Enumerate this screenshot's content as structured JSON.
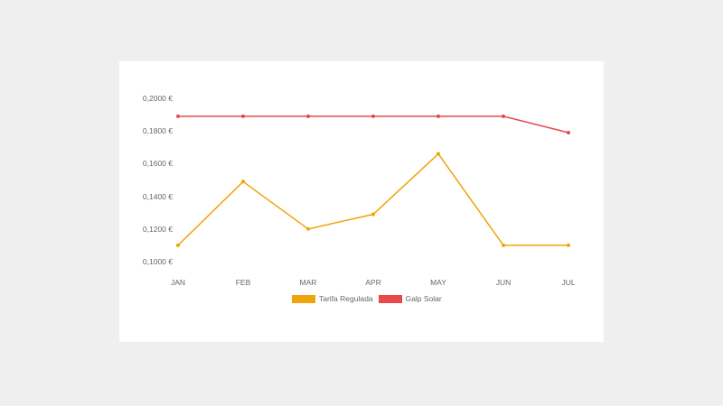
{
  "chart_data": {
    "type": "line",
    "title": "",
    "xlabel": "",
    "ylabel": "",
    "categories": [
      "JAN",
      "FEB",
      "MAR",
      "APR",
      "MAY",
      "JUN",
      "JUL"
    ],
    "y_ticks": [
      "0,2000 €",
      "0,1800 €",
      "0,1600 €",
      "0,1400 €",
      "0,1200 €",
      "0,1000 €"
    ],
    "ylim": [
      0.1,
      0.2
    ],
    "grid": false,
    "legend_position": "bottom",
    "series": [
      {
        "name": "Tarifa Regulada",
        "color": "#f0a30a",
        "values": [
          0.11,
          0.149,
          0.12,
          0.129,
          0.166,
          0.11,
          0.11
        ]
      },
      {
        "name": "Galp Solar",
        "color": "#e8474c",
        "values": [
          0.189,
          0.189,
          0.189,
          0.189,
          0.189,
          0.189,
          0.179
        ]
      }
    ]
  },
  "legend": [
    {
      "label": "Tarifa Regulada",
      "color": "#f0a30a"
    },
    {
      "label": "Galp Solar",
      "color": "#e8474c"
    }
  ]
}
